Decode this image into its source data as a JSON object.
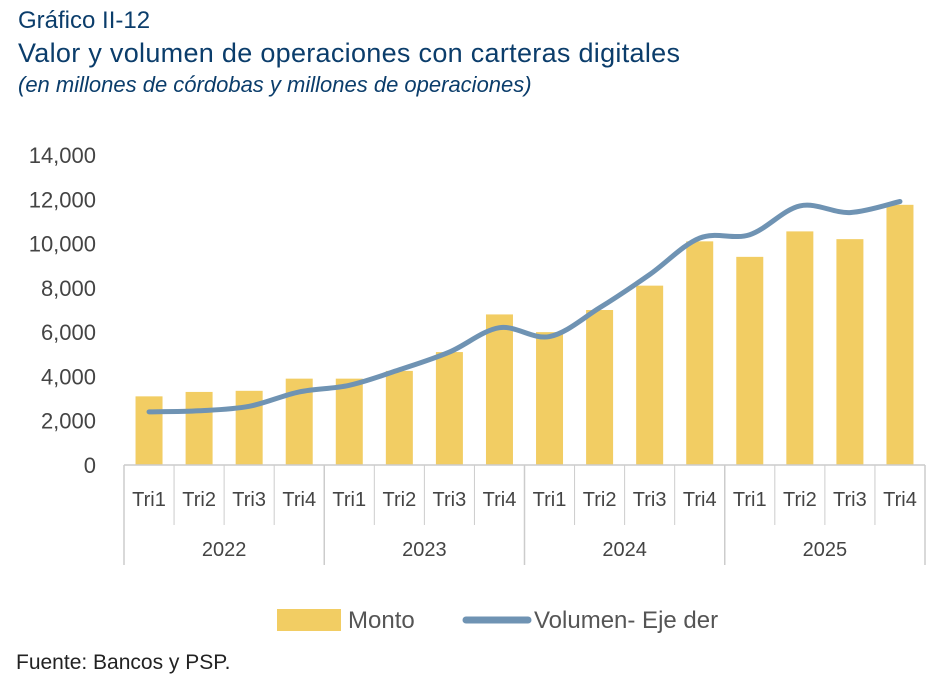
{
  "header": {
    "label": "Gráfico II-12",
    "title": "Valor y volumen de operaciones con carteras digitales",
    "subtitle": "(en millones de córdobas y millones de operaciones)"
  },
  "source": "Fuente: Bancos y PSP.",
  "colors": {
    "bar": "#f2cd63",
    "line": "#6f93b3",
    "axis": "#cccccc"
  },
  "chart_data": {
    "type": "bar",
    "y_ticks": [
      "14,000",
      "12,000",
      "10,000",
      "8,000",
      "6,000",
      "4,000",
      "2,000",
      "0"
    ],
    "ylim": [
      0,
      14000
    ],
    "grid": false,
    "legend_position": "bottom",
    "groups": [
      {
        "label": "2022",
        "categories": [
          "Tri1",
          "Tri2",
          "Tri3",
          "Tri4"
        ]
      },
      {
        "label": "2023",
        "categories": [
          "Tri1",
          "Tri2",
          "Tri3",
          "Tri4"
        ]
      },
      {
        "label": "2024",
        "categories": [
          "Tri1",
          "Tri2",
          "Tri3",
          "Tri4"
        ]
      },
      {
        "label": "2025",
        "categories": [
          "Tri1",
          "Tri2",
          "Tri3",
          "Tri4"
        ]
      }
    ],
    "series": [
      {
        "name": "Monto",
        "type": "bar",
        "values": [
          3100,
          3300,
          3350,
          3900,
          3900,
          4250,
          5100,
          6800,
          6000,
          7000,
          8100,
          10100,
          9400,
          10550,
          10200,
          11750
        ]
      },
      {
        "name": "Volumen- Eje der",
        "type": "line",
        "values": [
          2400,
          2450,
          2650,
          3300,
          3600,
          4300,
          5100,
          6200,
          5800,
          7100,
          8600,
          10250,
          10400,
          11700,
          11400,
          11900
        ]
      }
    ]
  }
}
